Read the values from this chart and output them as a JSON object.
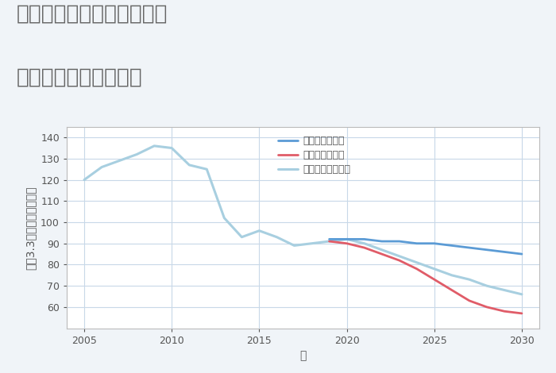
{
  "title_line1": "兵庫県豊岡市出石町鳥居の",
  "title_line2": "中古戸建ての価格推移",
  "xlabel": "年",
  "ylabel": "坪（3.3㎡）単価（万円）",
  "ylim": [
    50,
    145
  ],
  "xlim": [
    2004,
    2031
  ],
  "yticks": [
    60,
    70,
    80,
    90,
    100,
    110,
    120,
    130,
    140
  ],
  "xticks": [
    2005,
    2010,
    2015,
    2020,
    2025,
    2030
  ],
  "background_color": "#f0f4f8",
  "plot_bg_color": "#ffffff",
  "grid_color": "#c8d8e8",
  "good_scenario": {
    "label": "グッドシナリオ",
    "color": "#5b9bd5",
    "linewidth": 2.0,
    "x": [
      2019,
      2020,
      2021,
      2022,
      2023,
      2024,
      2025,
      2026,
      2027,
      2028,
      2029,
      2030
    ],
    "y": [
      92,
      92,
      92,
      91,
      91,
      90,
      90,
      89,
      88,
      87,
      86,
      85
    ]
  },
  "bad_scenario": {
    "label": "バッドシナリオ",
    "color": "#e05c68",
    "linewidth": 2.0,
    "x": [
      2019,
      2020,
      2021,
      2022,
      2023,
      2024,
      2025,
      2026,
      2027,
      2028,
      2029,
      2030
    ],
    "y": [
      91,
      90,
      88,
      85,
      82,
      78,
      73,
      68,
      63,
      60,
      58,
      57
    ]
  },
  "normal_scenario_hist": {
    "label": "ノーマルシナリオ",
    "color": "#a8cfe0",
    "linewidth": 2.2,
    "x": [
      2005,
      2006,
      2007,
      2008,
      2009,
      2010,
      2011,
      2012,
      2013,
      2014,
      2015,
      2016,
      2017,
      2018,
      2019,
      2020
    ],
    "y": [
      120,
      126,
      129,
      132,
      136,
      135,
      127,
      125,
      102,
      93,
      96,
      93,
      89,
      90,
      91,
      92
    ]
  },
  "normal_scenario_future": {
    "color": "#a8cfe0",
    "linewidth": 2.2,
    "x": [
      2020,
      2021,
      2022,
      2023,
      2024,
      2025,
      2026,
      2027,
      2028,
      2029,
      2030
    ],
    "y": [
      92,
      90,
      87,
      84,
      81,
      78,
      75,
      73,
      70,
      68,
      66
    ]
  },
  "title_color": "#666666",
  "title_fontsize": 19,
  "axis_label_fontsize": 10,
  "tick_fontsize": 9,
  "legend_fontsize": 9
}
